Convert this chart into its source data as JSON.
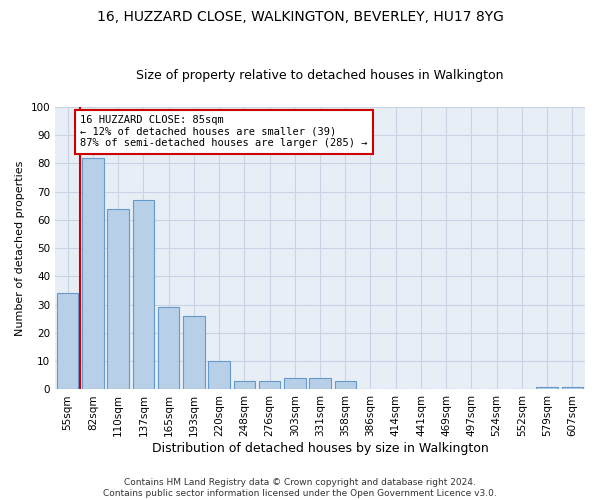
{
  "title": "16, HUZZARD CLOSE, WALKINGTON, BEVERLEY, HU17 8YG",
  "subtitle": "Size of property relative to detached houses in Walkington",
  "xlabel": "Distribution of detached houses by size in Walkington",
  "ylabel": "Number of detached properties",
  "bar_labels": [
    "55sqm",
    "82sqm",
    "110sqm",
    "137sqm",
    "165sqm",
    "193sqm",
    "220sqm",
    "248sqm",
    "276sqm",
    "303sqm",
    "331sqm",
    "358sqm",
    "386sqm",
    "414sqm",
    "441sqm",
    "469sqm",
    "497sqm",
    "524sqm",
    "552sqm",
    "579sqm",
    "607sqm"
  ],
  "bar_values": [
    34,
    82,
    64,
    67,
    29,
    26,
    10,
    3,
    3,
    4,
    4,
    3,
    0,
    0,
    0,
    0,
    0,
    0,
    0,
    1,
    1
  ],
  "bar_color": "#b8cfe8",
  "bar_edge_color": "#6699cc",
  "grid_color": "#c8d4e4",
  "background_color": "#e8eef6",
  "vline_x": 0.5,
  "vline_color": "#cc0000",
  "annotation_text": "16 HUZZARD CLOSE: 85sqm\n← 12% of detached houses are smaller (39)\n87% of semi-detached houses are larger (285) →",
  "annotation_box_color": "#ffffff",
  "annotation_box_edge": "#cc0000",
  "footer": "Contains HM Land Registry data © Crown copyright and database right 2024.\nContains public sector information licensed under the Open Government Licence v3.0.",
  "ylim": [
    0,
    100
  ],
  "title_fontsize": 10,
  "subtitle_fontsize": 9,
  "annotation_fontsize": 7.5,
  "ylabel_fontsize": 8,
  "xlabel_fontsize": 9,
  "tick_fontsize": 7.5,
  "footer_fontsize": 6.5
}
